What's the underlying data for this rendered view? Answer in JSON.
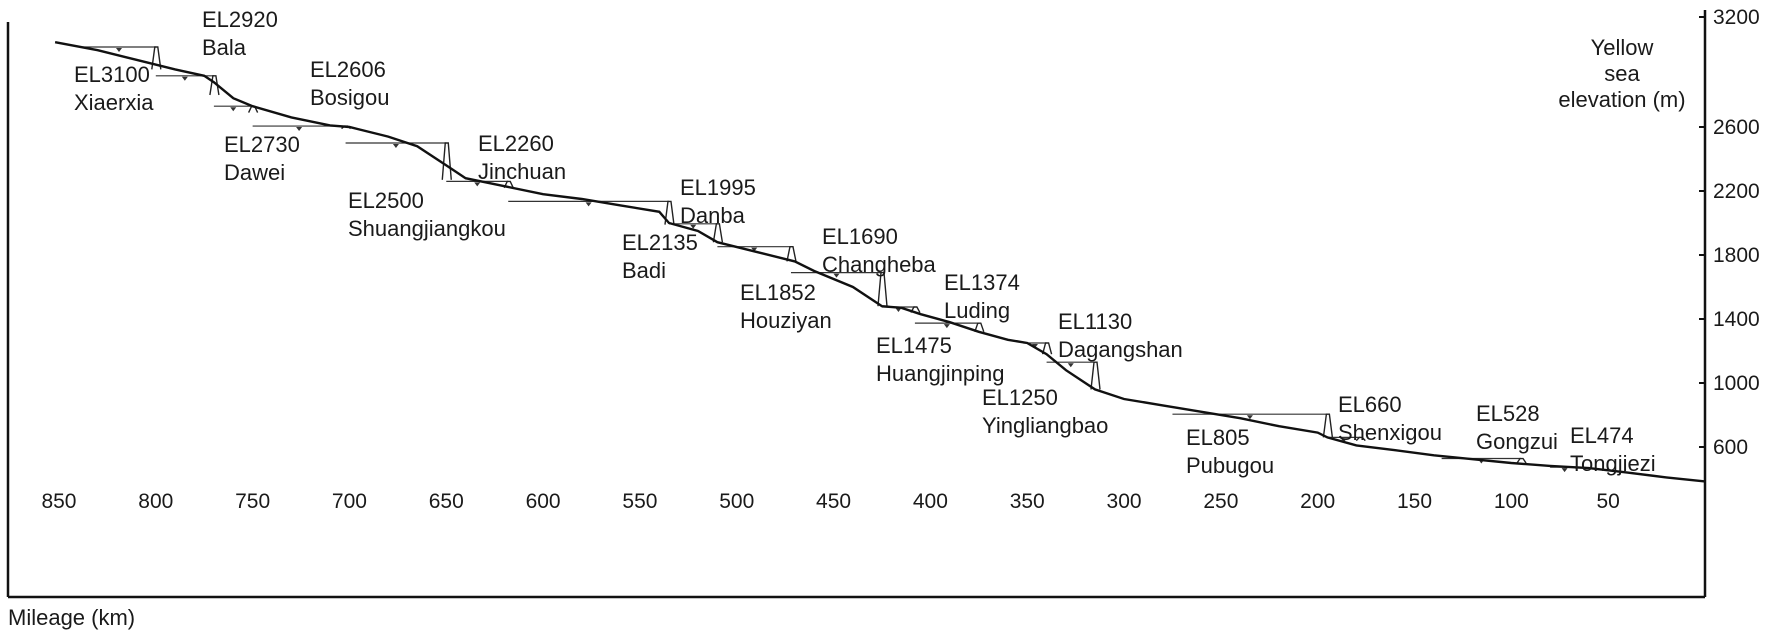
{
  "chart_data": {
    "type": "line",
    "title": "",
    "xlabel": "Mileage (km)",
    "ylabel": "Yellow sea elevation (m)",
    "ylabel_lines": [
      "Yellow",
      "sea",
      "elevation (m)"
    ],
    "x_ticks": [
      850,
      800,
      750,
      700,
      650,
      600,
      550,
      500,
      450,
      400,
      350,
      300,
      250,
      200,
      150,
      100,
      50
    ],
    "y_ticks": [
      600,
      1000,
      1400,
      1800,
      2200,
      2600,
      3200
    ],
    "xlim": [
      0,
      860
    ],
    "ylim": [
      320,
      3200
    ],
    "x_reversed": true,
    "grid": false,
    "riverbed": {
      "x": [
        852,
        830,
        810,
        790,
        775,
        770,
        760,
        750,
        730,
        710,
        700,
        680,
        665,
        650,
        640,
        620,
        600,
        580,
        560,
        540,
        535,
        520,
        510,
        490,
        470,
        460,
        440,
        425,
        415,
        405,
        390,
        375,
        360,
        350,
        340,
        330,
        315,
        300,
        280,
        260,
        240,
        220,
        200,
        195,
        180,
        160,
        140,
        120,
        100,
        80,
        60,
        40,
        20,
        0
      ],
      "y": [
        3130,
        3080,
        3020,
        2960,
        2920,
        2880,
        2780,
        2730,
        2660,
        2610,
        2600,
        2540,
        2480,
        2360,
        2280,
        2230,
        2180,
        2150,
        2110,
        2070,
        2000,
        1950,
        1880,
        1820,
        1760,
        1700,
        1600,
        1480,
        1470,
        1430,
        1380,
        1320,
        1270,
        1250,
        1180,
        1080,
        960,
        900,
        860,
        820,
        780,
        730,
        690,
        660,
        610,
        580,
        548,
        524,
        500,
        482,
        468,
        440,
        410,
        385
      ]
    },
    "stations": [
      {
        "name": "Xiaerxia",
        "elevation_text": "EL3100",
        "dam_km": 800,
        "el": 3100,
        "bed": 2960,
        "back_km": 838
      },
      {
        "name": "Bala",
        "elevation_text": "EL2920",
        "dam_km": 770,
        "el": 2920,
        "bed": 2800,
        "back_km": 800
      },
      {
        "name": "Dawei",
        "elevation_text": "EL2730",
        "dam_km": 750,
        "el": 2730,
        "bed": 2690,
        "back_km": 770
      },
      {
        "name": "Bosigou",
        "elevation_text": "EL2606",
        "dam_km": 702,
        "el": 2606,
        "bed": 2590,
        "back_km": 750
      },
      {
        "name": "Shuangjiangkou",
        "elevation_text": "EL2500",
        "dam_km": 650,
        "el": 2500,
        "bed": 2270,
        "back_km": 702
      },
      {
        "name": "Jinchuan",
        "elevation_text": "EL2260",
        "dam_km": 618,
        "el": 2260,
        "bed": 2220,
        "back_km": 650
      },
      {
        "name": "Badi",
        "elevation_text": "EL2135",
        "dam_km": 535,
        "el": 2135,
        "bed": 1990,
        "back_km": 618
      },
      {
        "name": "Danba",
        "elevation_text": "EL1995",
        "dam_km": 510,
        "el": 1995,
        "bed": 1880,
        "back_km": 535
      },
      {
        "name": "Houziyan",
        "elevation_text": "EL1852",
        "dam_km": 472,
        "el": 1852,
        "bed": 1760,
        "back_km": 510
      },
      {
        "name": "Changheba",
        "elevation_text": "EL1690",
        "dam_km": 425,
        "el": 1690,
        "bed": 1480,
        "back_km": 472
      },
      {
        "name": "Huangjinping",
        "elevation_text": "EL1475",
        "dam_km": 408,
        "el": 1475,
        "bed": 1440,
        "back_km": 425
      },
      {
        "name": "Luding",
        "elevation_text": "EL1374",
        "dam_km": 375,
        "el": 1374,
        "bed": 1320,
        "back_km": 408
      },
      {
        "name": "Yingliangbao",
        "elevation_text": "EL1250",
        "dam_km": 340,
        "el": 1250,
        "bed": 1180,
        "back_km": 352
      },
      {
        "name": "Dagangshan",
        "elevation_text": "EL1130",
        "dam_km": 315,
        "el": 1130,
        "bed": 960,
        "back_km": 340
      },
      {
        "name": "Pubugou",
        "elevation_text": "EL805",
        "dam_km": 195,
        "el": 805,
        "bed": 660,
        "back_km": 275
      },
      {
        "name": "Shenxigou",
        "elevation_text": "EL660",
        "dam_km": 178,
        "el": 660,
        "bed": 640,
        "back_km": 195
      },
      {
        "name": "Gongzui",
        "elevation_text": "EL528",
        "dam_km": 95,
        "el": 528,
        "bed": 500,
        "back_km": 136
      },
      {
        "name": "Tongjiezi",
        "elevation_text": "EL474",
        "dam_km": 65,
        "el": 474,
        "bed": 468,
        "back_km": 80
      }
    ]
  }
}
